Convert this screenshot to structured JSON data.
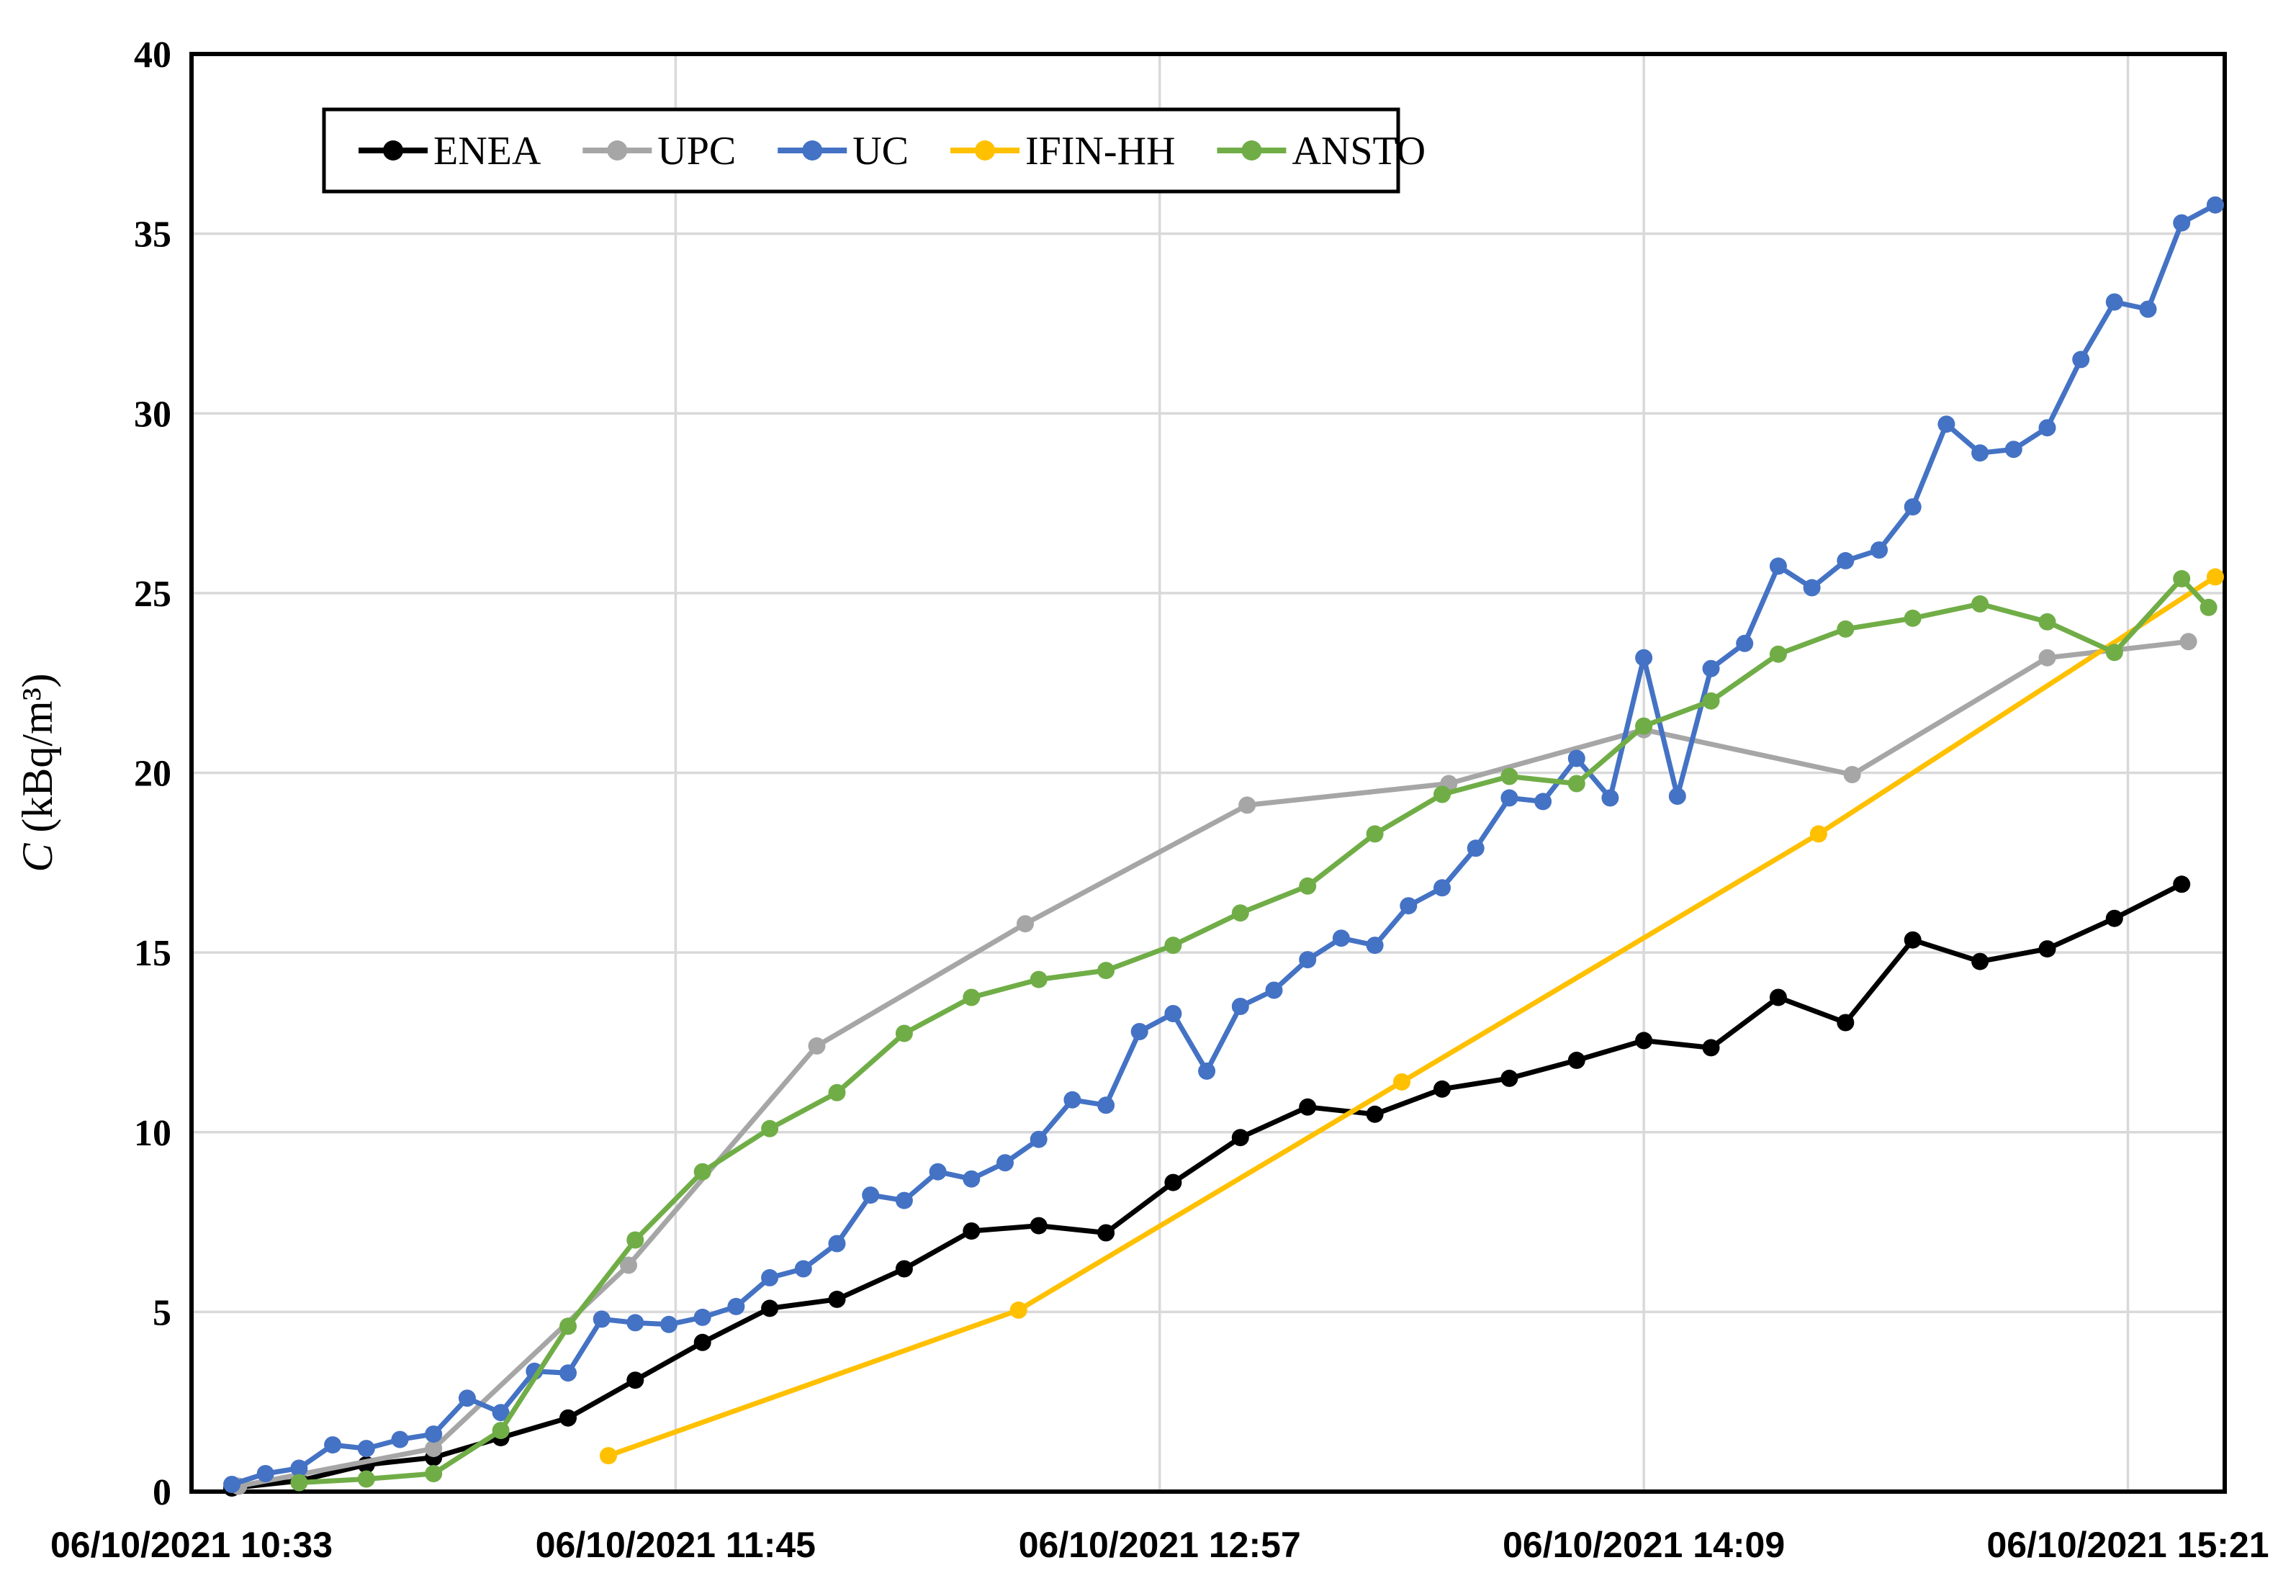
{
  "page": {
    "background": "#ffffff"
  },
  "legend": {
    "position": "top",
    "items": [
      {
        "label": "ENEA",
        "color": "#000000"
      },
      {
        "label": "UPC",
        "color": "#A6A6A6"
      },
      {
        "label": "UC",
        "color": "#4472C4"
      },
      {
        "label": "IFIN-HH",
        "color": "#FFC000"
      },
      {
        "label": "ANSTO",
        "color": "#70AD47"
      }
    ]
  },
  "y_axis": {
    "title": "C (kBq/m³)",
    "title_italic_prefix": "C",
    "title_rest": " (kBq/m³)",
    "min": 0,
    "max": 40,
    "tick_step": 5,
    "tick_labels": [
      "0",
      "5",
      "10",
      "15",
      "20",
      "25",
      "30",
      "35",
      "40"
    ]
  },
  "x_axis": {
    "tick_labels": [
      "06/10/2021 10:33",
      "06/10/2021 11:45",
      "06/10/2021 12:57",
      "06/10/2021 14:09",
      "06/10/2021 15:21"
    ],
    "tick_minutes": [
      0,
      72,
      144,
      216,
      288
    ],
    "domain_minutes": [
      0,
      302.4
    ]
  },
  "chart_data": {
    "type": "line",
    "title": "",
    "xlabel": "",
    "ylabel": "C (kBq/m³)",
    "ylim": [
      0,
      40
    ],
    "grid": true,
    "legend_position": "top",
    "x_origin_label": "06/10/2021 10:33",
    "series": [
      {
        "name": "ENEA",
        "color": "#000000",
        "times": [
          "10:39",
          "10:49",
          "10:59",
          "11:09",
          "11:19",
          "11:29",
          "11:39",
          "11:49",
          "11:59",
          "12:09",
          "12:19",
          "12:29",
          "12:39",
          "12:49",
          "12:59",
          "13:09",
          "13:19",
          "13:29",
          "13:39",
          "13:49",
          "13:59",
          "14:09",
          "14:19",
          "14:29",
          "14:39",
          "14:49",
          "14:59",
          "15:09",
          "15:19",
          "15:29"
        ],
        "values": [
          0.1,
          0.3,
          0.75,
          0.95,
          1.5,
          2.05,
          3.1,
          4.15,
          5.1,
          5.35,
          6.2,
          7.25,
          7.4,
          7.2,
          8.6,
          9.85,
          10.7,
          10.5,
          11.2,
          11.5,
          12.0,
          12.55,
          12.35,
          13.75,
          13.05,
          15.35,
          14.75,
          15.1,
          15.95,
          16.9
        ]
      },
      {
        "name": "UPC",
        "color": "#A6A6A6",
        "times": [
          "10:40",
          "11:09",
          "11:38",
          "12:06",
          "12:37",
          "13:10",
          "13:40",
          "14:09",
          "14:40",
          "15:09",
          "15:30"
        ],
        "values": [
          0.15,
          1.2,
          6.3,
          12.4,
          15.8,
          19.1,
          19.7,
          21.2,
          19.95,
          23.2,
          23.65
        ]
      },
      {
        "name": "UC",
        "color": "#4472C4",
        "times": [
          "10:39",
          "10:44",
          "10:49",
          "10:54",
          "10:59",
          "11:04",
          "11:09",
          "11:14",
          "11:19",
          "11:24",
          "11:29",
          "11:34",
          "11:39",
          "11:44",
          "11:49",
          "11:54",
          "11:59",
          "12:04",
          "12:09",
          "12:14",
          "12:19",
          "12:24",
          "12:29",
          "12:34",
          "12:39",
          "12:44",
          "12:49",
          "12:54",
          "12:59",
          "13:04",
          "13:09",
          "13:14",
          "13:19",
          "13:24",
          "13:29",
          "13:34",
          "13:39",
          "13:44",
          "13:49",
          "13:54",
          "13:59",
          "14:04",
          "14:09",
          "14:14",
          "14:19",
          "14:24",
          "14:29",
          "14:34",
          "14:39",
          "14:44",
          "14:49",
          "14:54",
          "14:59",
          "15:04",
          "15:09",
          "15:14",
          "15:19",
          "15:24",
          "15:29",
          "15:34"
        ],
        "values": [
          0.2,
          0.5,
          0.65,
          1.3,
          1.2,
          1.45,
          1.6,
          2.6,
          2.2,
          3.35,
          3.3,
          4.8,
          4.7,
          4.65,
          4.85,
          5.15,
          5.95,
          6.2,
          6.9,
          8.25,
          8.1,
          8.9,
          8.7,
          9.15,
          9.8,
          10.9,
          10.75,
          12.8,
          13.3,
          11.7,
          13.5,
          13.95,
          14.8,
          15.4,
          15.2,
          16.3,
          16.8,
          17.9,
          19.3,
          19.2,
          20.4,
          19.3,
          23.2,
          19.35,
          22.9,
          23.6,
          25.75,
          25.15,
          25.9,
          26.2,
          27.4,
          29.7,
          28.9,
          29.0,
          29.6,
          31.5,
          33.1,
          32.9,
          35.3,
          35.8
        ]
      },
      {
        "name": "IFIN-HH",
        "color": "#FFC000",
        "times": [
          "11:35",
          "12:36",
          "13:33",
          "14:35",
          "15:34"
        ],
        "values": [
          1.0,
          5.05,
          11.4,
          18.3,
          25.45
        ]
      },
      {
        "name": "ANSTO",
        "color": "#70AD47",
        "times": [
          "10:49",
          "10:59",
          "11:09",
          "11:19",
          "11:29",
          "11:39",
          "11:49",
          "11:59",
          "12:09",
          "12:19",
          "12:29",
          "12:39",
          "12:49",
          "12:59",
          "13:09",
          "13:19",
          "13:29",
          "13:39",
          "13:49",
          "13:59",
          "14:09",
          "14:19",
          "14:29",
          "14:39",
          "14:49",
          "14:59",
          "15:09",
          "15:19",
          "15:29",
          "15:33"
        ],
        "values": [
          0.25,
          0.35,
          0.5,
          1.7,
          4.6,
          7.0,
          8.9,
          10.1,
          11.1,
          12.75,
          13.75,
          14.25,
          14.5,
          15.2,
          16.1,
          16.85,
          18.3,
          19.4,
          19.9,
          19.7,
          21.3,
          22.0,
          23.3,
          24.0,
          24.3,
          24.7,
          24.2,
          23.35,
          25.4,
          24.6
        ]
      }
    ],
    "style": {
      "grid_color": "#D9D9D9",
      "border_color": "#000000",
      "line_width": 7,
      "marker_radius": 12
    }
  }
}
